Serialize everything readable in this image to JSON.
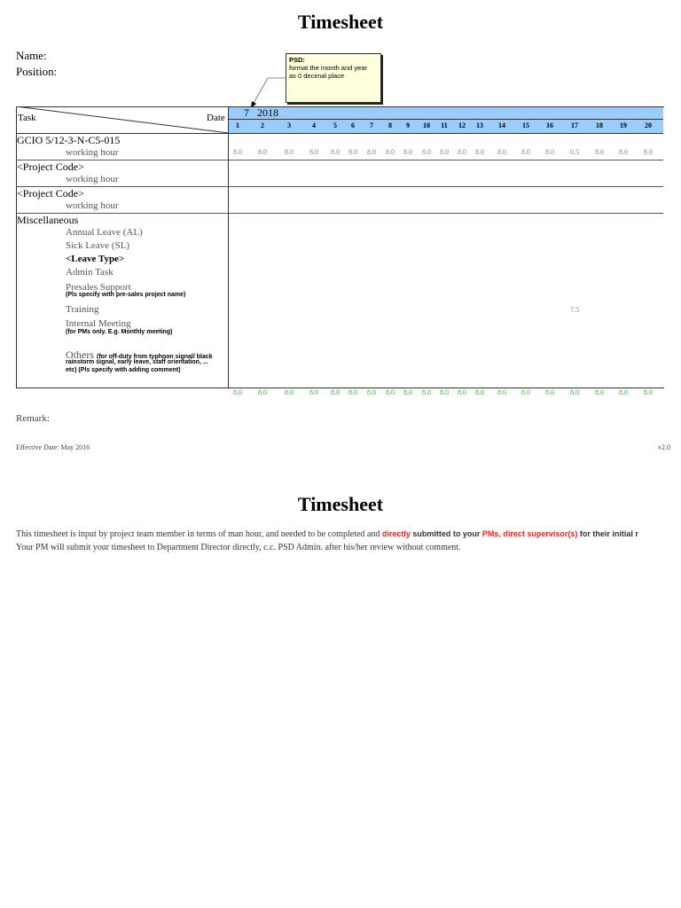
{
  "page1": {
    "title": "Timesheet",
    "name_label": "Name:",
    "position_label": "Position:",
    "callout": {
      "heading": "PSD:",
      "line1": "format the month and year",
      "line2": "as 0 decimal place"
    },
    "header": {
      "task": "Task",
      "date": "Date",
      "month": "7",
      "year": "2018",
      "days": [
        "1",
        "2",
        "3",
        "4",
        "5",
        "6",
        "7",
        "8",
        "9",
        "10",
        "11",
        "12",
        "13",
        "14",
        "15",
        "16",
        "17",
        "18",
        "19",
        "20"
      ]
    },
    "rows": {
      "gcio": {
        "code": "GCIO 5/12-3-N-C5-015",
        "sub": "working hour",
        "values": [
          "8.0",
          "8.0",
          "8.0",
          "8.0",
          "8.0",
          "8.0",
          "8.0",
          "8.0",
          "8.0",
          "8.0",
          "8.0",
          "8.0",
          "8.0",
          "8.0",
          "8.0",
          "8.0",
          "0.5",
          "8.0",
          "8.0",
          "8.0"
        ]
      },
      "project1": {
        "code": "<Project Code>",
        "sub": "working hour"
      },
      "project2": {
        "code": "<Project Code>",
        "sub": "working hour"
      },
      "misc": {
        "title": "Miscellaneous",
        "annual": "Annual Leave (AL)",
        "sick": "Sick Leave (SL)",
        "leave_type": "<Leave Type>",
        "admin": "Admin Task",
        "presales": "Presales Support",
        "presales_note": "(Pls specify with pre-sales project name)",
        "training": "Training",
        "training_value": "7.5",
        "meeting": "Internal Meeting",
        "meeting_note": "(for PMs only. E.g. Monthly meeting)",
        "others": "Others",
        "others_note1": "(for off-duty from typhoon signal/ black",
        "others_note2": "rainstorm signal, early leave, staff orientation, ...",
        "others_note3": "etc)  (Pls specify with adding comment)"
      }
    },
    "totals": [
      "8.0",
      "8.0",
      "8.0",
      "8.0",
      "8.0",
      "8.0",
      "8.0",
      "8.0",
      "8.0",
      "8.0",
      "8.0",
      "8.0",
      "8.0",
      "8.0",
      "8.0",
      "8.0",
      "8.0",
      "8.0",
      "8.0",
      "8.0"
    ],
    "remark": "Remark:",
    "effective_date": "Effective Date: May 2016",
    "version": "v2.0"
  },
  "page2": {
    "title": "Timesheet",
    "line1_a": "This timesheet is input by project team member in terms of man hour, and needed to be completed and ",
    "line1_b": "directly",
    "line1_c": " submitted to your ",
    "line1_d": "PMs, direct supervisor(s)",
    "line1_e": " for their initial r",
    "line2": "Your PM will submit your timesheet to Department Director directly, c.c. PSD Admin. after his/her review without comment."
  },
  "colors": {
    "header_blue": "#99ccff",
    "value_blue": "#7777bb",
    "total_green": "#33aa33",
    "emphasis_red": "#ee2222",
    "callout_bg": "#ffffdd"
  }
}
